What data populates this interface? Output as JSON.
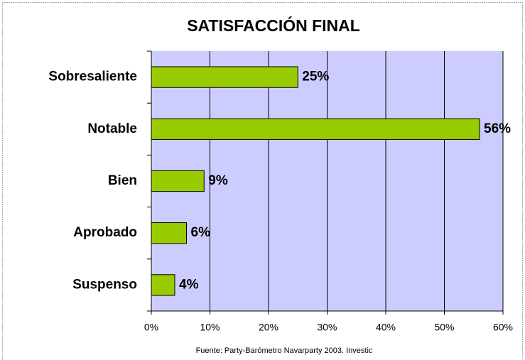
{
  "chart_data": {
    "type": "bar",
    "orientation": "horizontal",
    "title": "SATISFACCIÓN FINAL",
    "categories": [
      "Sobresaliente",
      "Notable",
      "Bien",
      "Aprobado",
      "Suspenso"
    ],
    "values": [
      25,
      56,
      9,
      6,
      4
    ],
    "value_labels": [
      "25%",
      "56%",
      "9%",
      "6%",
      "4%"
    ],
    "color": "#99cc00",
    "xlim": [
      0,
      60
    ],
    "xticks": [
      {
        "value": 0,
        "label": "0%"
      },
      {
        "value": 10,
        "label": "10%"
      },
      {
        "value": 20,
        "label": "20%"
      },
      {
        "value": 30,
        "label": "30%"
      },
      {
        "value": 40,
        "label": "40%"
      },
      {
        "value": 50,
        "label": "50%"
      },
      {
        "value": 60,
        "label": "60%"
      }
    ],
    "grid": true,
    "source": "Fuente: Party-Barómetro Navarparty 2003. Investic"
  }
}
